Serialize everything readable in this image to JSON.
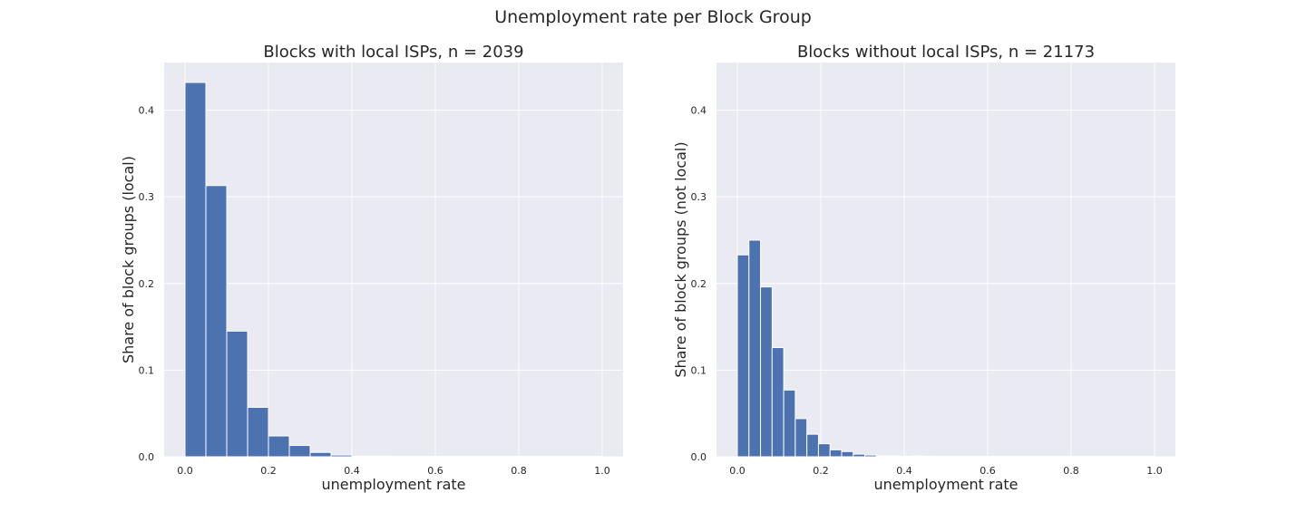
{
  "figure": {
    "suptitle": "Unemployment rate per Block Group"
  },
  "colors": {
    "background": "#eaeaf2",
    "grid": "#ffffff",
    "bar": "#4c72b0",
    "bar_edge": "#ffffff"
  },
  "chart_data": [
    {
      "type": "bar",
      "title": "Blocks with local ISPs, n = 2039",
      "xlabel": "unemployment rate",
      "ylabel": "Share of block groups (local)",
      "xlim": [
        -0.05,
        1.05
      ],
      "ylim": [
        0,
        0.455
      ],
      "xticks": [
        0.0,
        0.2,
        0.4,
        0.6,
        0.8,
        1.0
      ],
      "xtick_labels": [
        "0.0",
        "0.2",
        "0.4",
        "0.6",
        "0.8",
        "1.0"
      ],
      "yticks": [
        0.0,
        0.1,
        0.2,
        0.3,
        0.4
      ],
      "ytick_labels": [
        "0.0",
        "0.1",
        "0.2",
        "0.3",
        "0.4"
      ],
      "grid": true,
      "bin_width": 0.05,
      "bins_start": [
        0.0,
        0.05,
        0.1,
        0.15,
        0.2,
        0.25,
        0.3,
        0.35,
        0.4,
        0.45,
        0.5,
        0.55,
        0.6,
        0.65,
        0.7,
        0.75,
        0.8,
        0.85,
        0.9,
        0.95
      ],
      "values": [
        0.432,
        0.313,
        0.145,
        0.057,
        0.024,
        0.013,
        0.005,
        0.002,
        0.0005,
        0.0005,
        0.0002,
        0.0002,
        0.0002,
        0.0002,
        0.0002,
        0.0002,
        0.0002,
        0.0002,
        0.0002,
        0.0002
      ]
    },
    {
      "type": "bar",
      "title": "Blocks without local ISPs, n = 21173",
      "xlabel": "unemployment rate",
      "ylabel": "Share of block groups (not local)",
      "xlim": [
        -0.05,
        1.05
      ],
      "ylim": [
        0,
        0.455
      ],
      "xticks": [
        0.0,
        0.2,
        0.4,
        0.6,
        0.8,
        1.0
      ],
      "xtick_labels": [
        "0.0",
        "0.2",
        "0.4",
        "0.6",
        "0.8",
        "1.0"
      ],
      "yticks": [
        0.0,
        0.1,
        0.2,
        0.3,
        0.4
      ],
      "ytick_labels": [
        "0.0",
        "0.1",
        "0.2",
        "0.3",
        "0.4"
      ],
      "grid": true,
      "bin_width": 0.0278,
      "bins_start": [
        0.0,
        0.0278,
        0.0556,
        0.0833,
        0.1111,
        0.1389,
        0.1667,
        0.1944,
        0.2222,
        0.25,
        0.2778,
        0.3056,
        0.3333,
        0.3611,
        0.3889,
        0.4167,
        0.4444,
        0.4722,
        0.5,
        0.5278,
        0.5556,
        0.5833,
        0.6111,
        0.6389,
        0.6667,
        0.6944,
        0.7222,
        0.75,
        0.7778,
        0.8056,
        0.8333,
        0.8611,
        0.8889,
        0.9167,
        0.9444,
        0.9722
      ],
      "values": [
        0.233,
        0.25,
        0.196,
        0.126,
        0.077,
        0.044,
        0.026,
        0.015,
        0.008,
        0.006,
        0.003,
        0.002,
        0.001,
        0.001,
        0.0005,
        0.001,
        0.0005,
        0.0003,
        0.0003,
        0.0003,
        0.0003,
        0.0003,
        0.0003,
        0.0003,
        0.0003,
        0.0003,
        0.0003,
        0.0003,
        0.0003,
        0.0003,
        0.0003,
        0.0003,
        0.0003,
        0.0003,
        0.0003,
        0.0003
      ]
    }
  ]
}
